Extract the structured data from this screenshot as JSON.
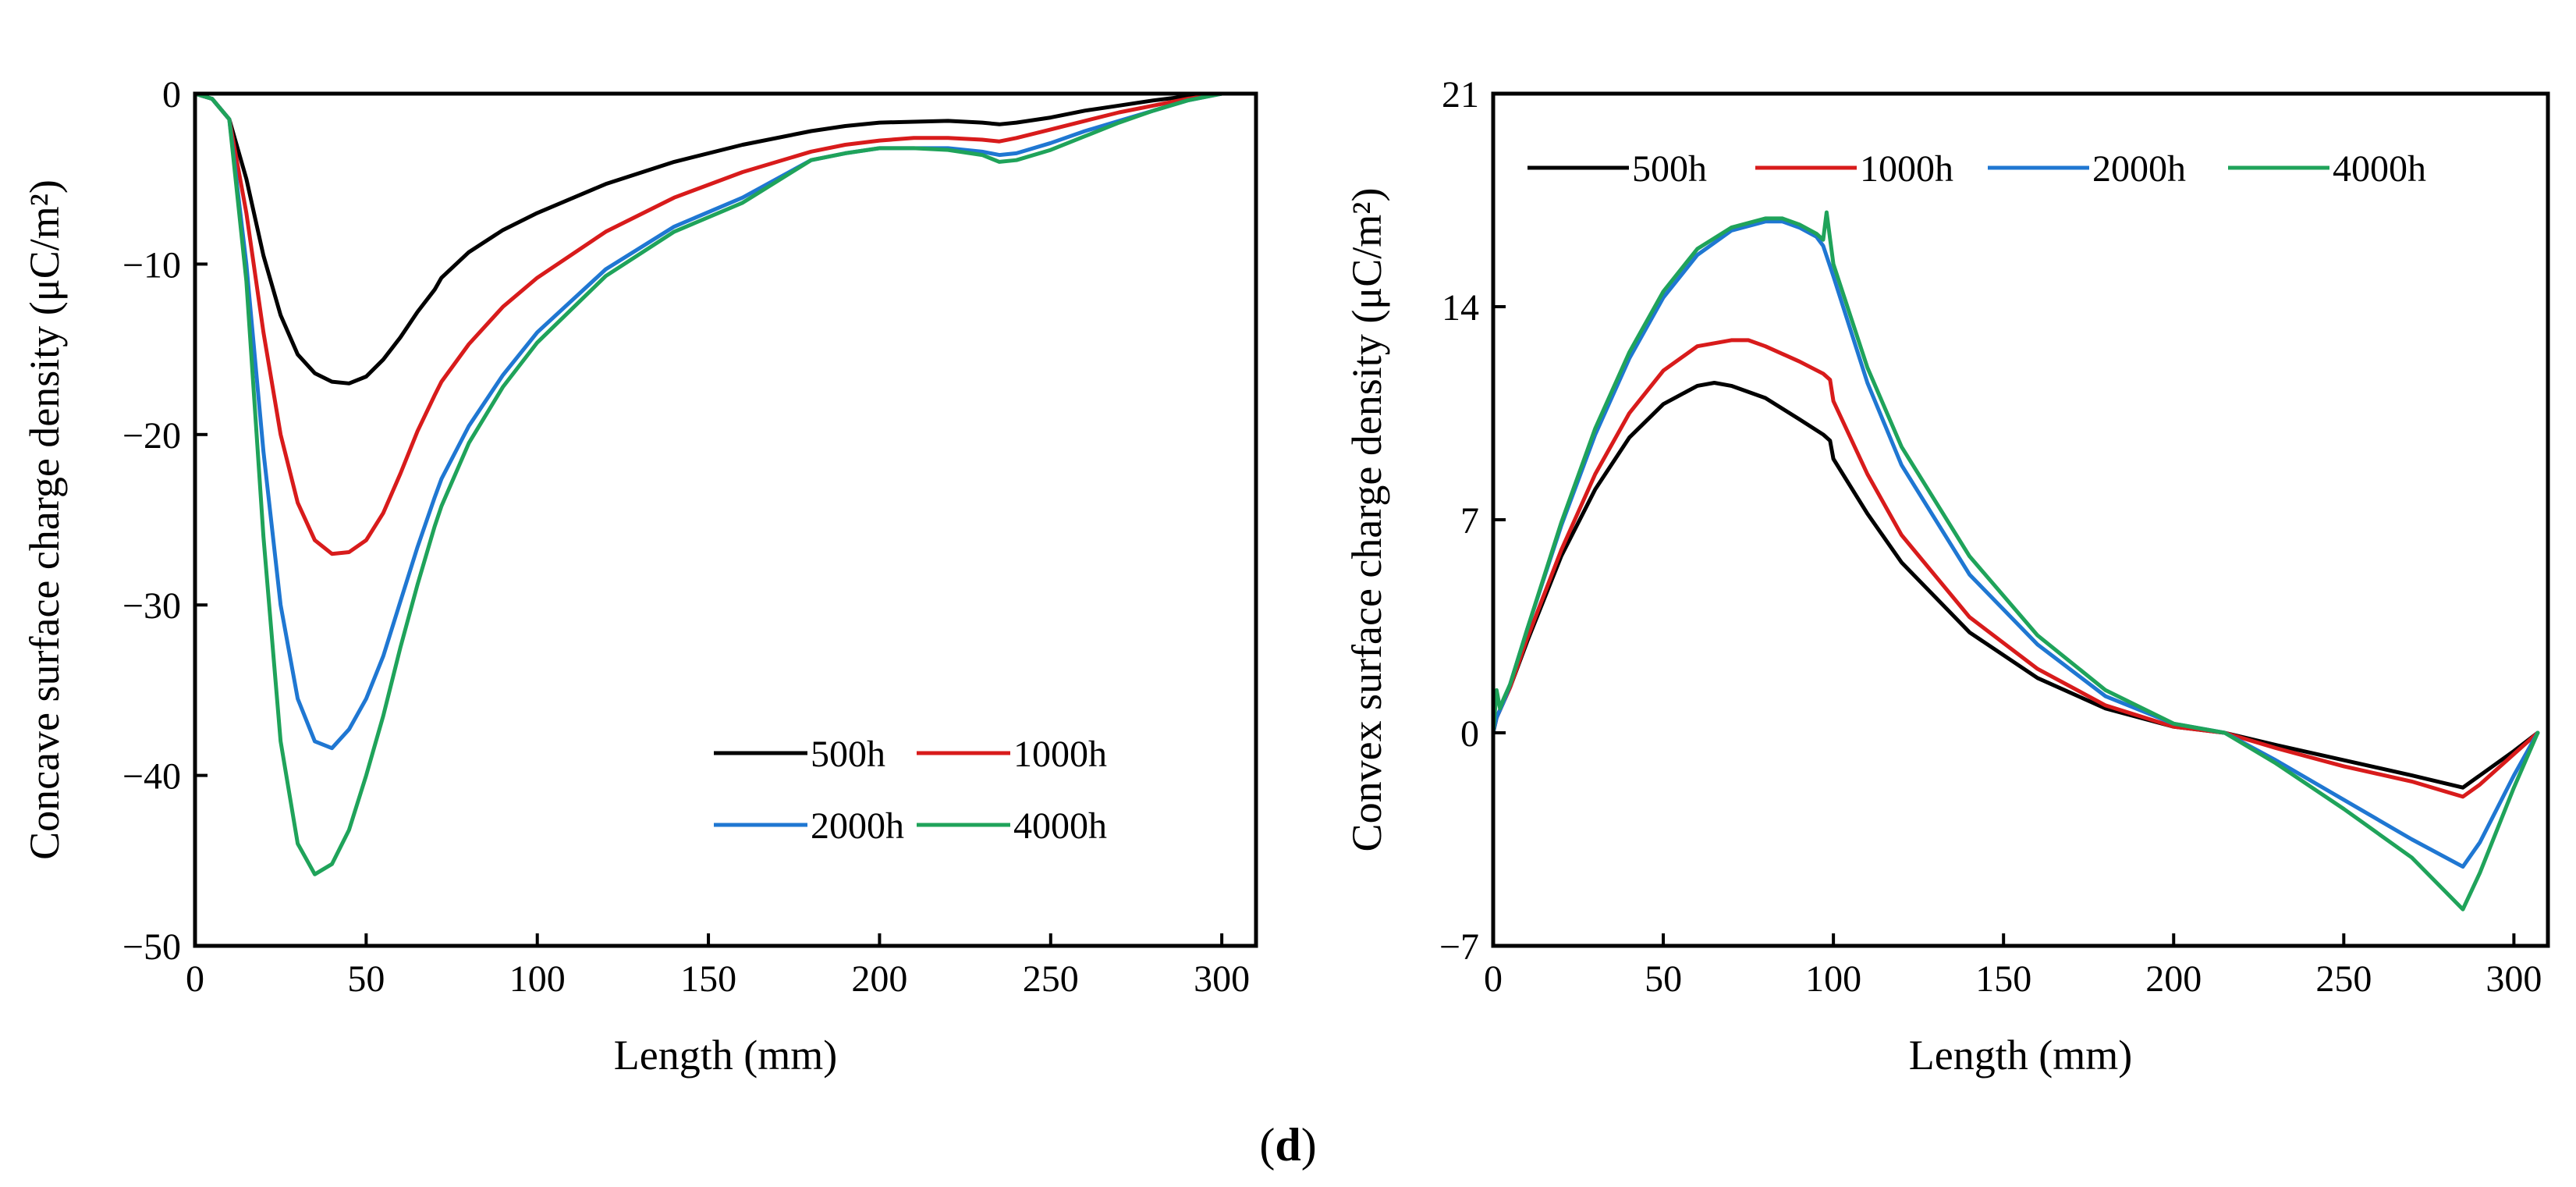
{
  "panel_label": {
    "open": "(",
    "letter": "d",
    "close": ")"
  },
  "chart_data": [
    {
      "type": "line",
      "title": "",
      "xlabel": "Length (mm)",
      "ylabel": "Concave surface charge density (μC/m²)",
      "xlim": [
        0,
        310
      ],
      "ylim": [
        -50,
        0
      ],
      "xticks": [
        0,
        50,
        100,
        150,
        200,
        250,
        300
      ],
      "yticks": [
        -50,
        -40,
        -30,
        -20,
        -10,
        0
      ],
      "grid": false,
      "legend_position": "lower-right",
      "series": [
        {
          "name": "500h",
          "color": "#000000",
          "x": [
            0,
            5,
            10,
            15,
            20,
            25,
            30,
            35,
            40,
            45,
            50,
            55,
            60,
            65,
            70,
            72,
            80,
            90,
            100,
            120,
            140,
            160,
            180,
            190,
            200,
            210,
            220,
            230,
            235,
            240,
            250,
            260,
            270,
            280,
            290,
            300,
            307
          ],
          "y": [
            0,
            -0.3,
            -1.5,
            -5,
            -9.5,
            -13,
            -15.3,
            -16.4,
            -16.9,
            -17.0,
            -16.6,
            -15.6,
            -14.3,
            -12.8,
            -11.5,
            -10.8,
            -9.3,
            -8.0,
            -7.0,
            -5.3,
            -4.0,
            -3.0,
            -2.2,
            -1.9,
            -1.7,
            -1.65,
            -1.6,
            -1.7,
            -1.8,
            -1.7,
            -1.4,
            -1.0,
            -0.7,
            -0.4,
            -0.15,
            0,
            0
          ]
        },
        {
          "name": "1000h",
          "color": "#d81b1b",
          "x": [
            0,
            5,
            10,
            15,
            20,
            25,
            30,
            35,
            40,
            45,
            50,
            55,
            60,
            65,
            70,
            72,
            80,
            90,
            100,
            120,
            140,
            160,
            180,
            190,
            200,
            210,
            220,
            230,
            235,
            240,
            250,
            260,
            270,
            280,
            290,
            300,
            307
          ],
          "y": [
            0,
            -0.3,
            -1.5,
            -7,
            -14,
            -20,
            -24,
            -26.2,
            -27.0,
            -26.9,
            -26.2,
            -24.6,
            -22.3,
            -19.8,
            -17.7,
            -16.9,
            -14.7,
            -12.5,
            -10.8,
            -8.1,
            -6.1,
            -4.6,
            -3.4,
            -3.0,
            -2.75,
            -2.6,
            -2.6,
            -2.7,
            -2.8,
            -2.6,
            -2.1,
            -1.6,
            -1.1,
            -0.7,
            -0.3,
            0,
            0
          ]
        },
        {
          "name": "2000h",
          "color": "#1f77d2",
          "x": [
            0,
            5,
            10,
            15,
            20,
            25,
            30,
            35,
            40,
            45,
            50,
            55,
            60,
            65,
            70,
            72,
            80,
            90,
            100,
            120,
            140,
            160,
            180,
            190,
            200,
            210,
            220,
            230,
            235,
            240,
            250,
            260,
            270,
            280,
            290,
            300,
            307
          ],
          "y": [
            0,
            -0.3,
            -1.5,
            -10,
            -21,
            -30,
            -35.5,
            -38.0,
            -38.4,
            -37.3,
            -35.5,
            -33.0,
            -29.8,
            -26.6,
            -23.7,
            -22.6,
            -19.5,
            -16.5,
            -14.0,
            -10.3,
            -7.8,
            -6.1,
            -3.9,
            -3.5,
            -3.2,
            -3.2,
            -3.2,
            -3.4,
            -3.6,
            -3.5,
            -2.9,
            -2.2,
            -1.6,
            -1.0,
            -0.4,
            0,
            0
          ]
        },
        {
          "name": "4000h",
          "color": "#1fa35a",
          "x": [
            0,
            5,
            10,
            15,
            20,
            25,
            30,
            35,
            40,
            45,
            50,
            55,
            60,
            65,
            70,
            72,
            80,
            90,
            100,
            120,
            140,
            160,
            180,
            190,
            200,
            210,
            220,
            230,
            235,
            240,
            250,
            260,
            270,
            280,
            290,
            300,
            307
          ],
          "y": [
            0,
            -0.3,
            -1.5,
            -11,
            -26,
            -38,
            -44,
            -45.8,
            -45.2,
            -43.2,
            -40.0,
            -36.5,
            -32.5,
            -28.8,
            -25.4,
            -24.2,
            -20.5,
            -17.2,
            -14.6,
            -10.7,
            -8.1,
            -6.4,
            -3.9,
            -3.5,
            -3.2,
            -3.2,
            -3.3,
            -3.6,
            -4.0,
            -3.9,
            -3.3,
            -2.5,
            -1.7,
            -1.0,
            -0.4,
            0,
            0
          ]
        }
      ]
    },
    {
      "type": "line",
      "title": "",
      "xlabel": "Length (mm)",
      "ylabel": "Convex surface charge density (μC/m²)",
      "xlim": [
        0,
        310
      ],
      "ylim": [
        -7,
        21
      ],
      "xticks": [
        0,
        50,
        100,
        150,
        200,
        250,
        300
      ],
      "yticks": [
        -7,
        0,
        7,
        14,
        21
      ],
      "grid": false,
      "legend_position": "top",
      "series": [
        {
          "name": "500h",
          "color": "#000000",
          "x": [
            0,
            1,
            3,
            5,
            10,
            20,
            30,
            40,
            50,
            60,
            65,
            70,
            80,
            90,
            97,
            99,
            100,
            110,
            120,
            140,
            160,
            180,
            200,
            215,
            230,
            250,
            270,
            285,
            290,
            300,
            307
          ],
          "y": [
            0,
            0.5,
            1.0,
            1.5,
            3.0,
            5.8,
            8.0,
            9.7,
            10.8,
            11.4,
            11.5,
            11.4,
            11.0,
            10.3,
            9.8,
            9.6,
            9.0,
            7.2,
            5.6,
            3.3,
            1.8,
            0.8,
            0.2,
            0,
            -0.4,
            -0.9,
            -1.4,
            -1.8,
            -1.4,
            -0.6,
            0
          ]
        },
        {
          "name": "1000h",
          "color": "#d81b1b",
          "x": [
            0,
            1,
            3,
            5,
            10,
            20,
            30,
            40,
            50,
            60,
            70,
            75,
            80,
            90,
            97,
            99,
            100,
            110,
            120,
            140,
            160,
            180,
            200,
            215,
            230,
            250,
            270,
            285,
            290,
            300,
            307
          ],
          "y": [
            0,
            0.5,
            1.0,
            1.5,
            3.1,
            6.0,
            8.5,
            10.5,
            11.9,
            12.7,
            12.9,
            12.9,
            12.7,
            12.2,
            11.8,
            11.6,
            10.9,
            8.5,
            6.5,
            3.8,
            2.1,
            0.9,
            0.2,
            0,
            -0.5,
            -1.1,
            -1.6,
            -2.1,
            -1.7,
            -0.7,
            0
          ]
        },
        {
          "name": "2000h",
          "color": "#1f77d2",
          "x": [
            0,
            1,
            3,
            5,
            10,
            20,
            30,
            40,
            50,
            60,
            70,
            80,
            85,
            90,
            95,
            97,
            100,
            110,
            120,
            140,
            160,
            180,
            200,
            215,
            230,
            250,
            270,
            285,
            290,
            300,
            307
          ],
          "y": [
            0,
            0.5,
            1.0,
            1.6,
            3.4,
            6.8,
            9.8,
            12.3,
            14.3,
            15.7,
            16.5,
            16.8,
            16.8,
            16.6,
            16.3,
            16.0,
            15.0,
            11.5,
            8.8,
            5.2,
            2.9,
            1.2,
            0.3,
            0,
            -0.9,
            -2.2,
            -3.5,
            -4.4,
            -3.6,
            -1.4,
            0
          ]
        },
        {
          "name": "4000h",
          "color": "#1fa35a",
          "x": [
            0,
            1,
            2,
            3,
            5,
            10,
            20,
            30,
            40,
            50,
            60,
            70,
            80,
            85,
            90,
            95,
            97,
            98,
            100,
            110,
            120,
            140,
            160,
            180,
            200,
            215,
            230,
            250,
            270,
            285,
            290,
            300,
            307
          ],
          "y": [
            0,
            1.4,
            0.8,
            1.1,
            1.6,
            3.4,
            6.9,
            10.0,
            12.5,
            14.5,
            15.9,
            16.6,
            16.9,
            16.9,
            16.7,
            16.4,
            16.2,
            17.1,
            15.4,
            12.0,
            9.4,
            5.8,
            3.2,
            1.4,
            0.3,
            0,
            -1.0,
            -2.5,
            -4.1,
            -5.8,
            -4.6,
            -1.8,
            0
          ]
        }
      ]
    }
  ]
}
